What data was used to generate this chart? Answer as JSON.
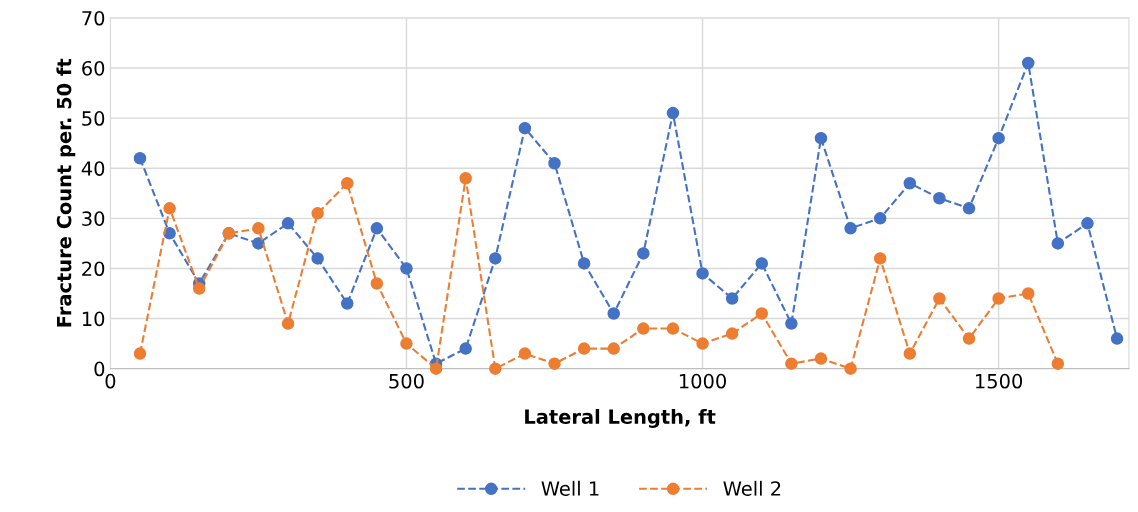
{
  "chart_data": {
    "type": "line",
    "xlabel": "Lateral Length, ft",
    "ylabel": "Fracture Count per. 50 ft",
    "xlim": [
      0,
      1720
    ],
    "xticks": [
      0,
      500,
      1000,
      1500
    ],
    "ylim": [
      0,
      70
    ],
    "yticks": [
      0,
      10,
      20,
      30,
      40,
      50,
      60,
      70
    ],
    "grid": true,
    "legend": "bottom",
    "marker": "circle",
    "line_style": "dashed",
    "series": [
      {
        "name": "Well 1",
        "color": "#4472c4",
        "x": [
          50,
          100,
          150,
          200,
          250,
          300,
          350,
          400,
          450,
          500,
          550,
          600,
          650,
          700,
          750,
          800,
          850,
          900,
          950,
          1000,
          1050,
          1100,
          1150,
          1200,
          1250,
          1300,
          1350,
          1400,
          1450,
          1500,
          1550,
          1600,
          1650,
          1700
        ],
        "values": [
          42,
          27,
          17,
          27,
          25,
          29,
          22,
          13,
          28,
          20,
          1,
          4,
          22,
          48,
          41,
          21,
          11,
          23,
          51,
          19,
          14,
          21,
          9,
          46,
          28,
          30,
          37,
          34,
          32,
          46,
          61,
          25,
          29,
          6
        ]
      },
      {
        "name": "Well 2",
        "color": "#ed7d31",
        "x": [
          50,
          100,
          150,
          200,
          250,
          300,
          350,
          400,
          450,
          500,
          550,
          600,
          650,
          700,
          750,
          800,
          850,
          900,
          950,
          1000,
          1050,
          1100,
          1150,
          1200,
          1250,
          1300,
          1350,
          1400,
          1450,
          1500,
          1550,
          1600
        ],
        "values": [
          3,
          32,
          16,
          27,
          28,
          9,
          31,
          37,
          17,
          5,
          0,
          38,
          0,
          3,
          1,
          4,
          4,
          8,
          8,
          5,
          7,
          11,
          1,
          2,
          0,
          22,
          3,
          14,
          6,
          14,
          15,
          1
        ]
      }
    ]
  }
}
